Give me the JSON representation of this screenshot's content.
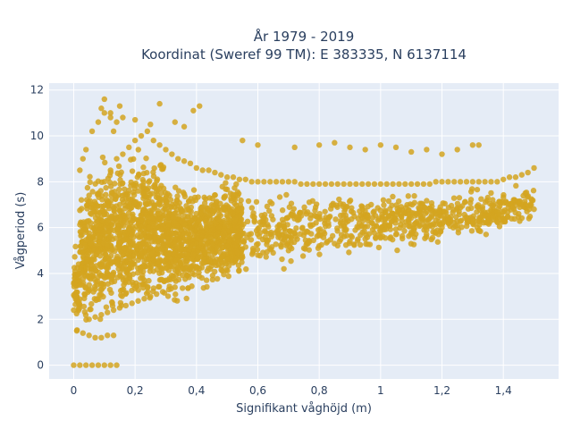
{
  "chart_data": {
    "type": "scatter",
    "title": "År 1979 - 2019",
    "subtitle": "Koordinat (Sweref 99 TM): E 383335, N 6137114",
    "xlabel": "Signifikant våghöjd (m)",
    "ylabel": "Vågperiod (s)",
    "xlim": [
      -0.08,
      1.58
    ],
    "ylim": [
      -0.6,
      12.3
    ],
    "x_ticks": [
      0,
      0.2,
      0.4,
      0.6,
      0.8,
      1,
      1.2,
      1.4
    ],
    "x_tick_labels": [
      "0",
      "0,2",
      "0,4",
      "0,6",
      "0,8",
      "1",
      "1,2",
      "1,4"
    ],
    "y_ticks": [
      0,
      2,
      4,
      6,
      8,
      10,
      12
    ],
    "y_tick_labels": [
      "0",
      "2",
      "4",
      "6",
      "8",
      "10",
      "12"
    ],
    "grid": true,
    "legend": "none",
    "marker_color": "#d4a520",
    "plot_background": "#e5ecf6",
    "series": [
      {
        "x": [
          0.0,
          0.02,
          0.04,
          0.06,
          0.08,
          0.1,
          0.12,
          0.14,
          0.01,
          0.03,
          0.05,
          0.07,
          0.09,
          0.11,
          0.13,
          0.0,
          0.01,
          0.02,
          0.03,
          0.04,
          0.05,
          0.02,
          0.03,
          0.04,
          0.06,
          0.08,
          0.1,
          0.12,
          0.14,
          0.16,
          0.05,
          0.07,
          0.09,
          0.11,
          0.13,
          0.15,
          0.17,
          0.19,
          0.21,
          0.23,
          0.25,
          0.27,
          0.29,
          0.31,
          0.33,
          0.06,
          0.08,
          0.1,
          0.12,
          0.14,
          0.16,
          0.18,
          0.2,
          0.22,
          0.24,
          0.26,
          0.28,
          0.3,
          0.32,
          0.34,
          0.36,
          0.38,
          0.4,
          0.42,
          0.44,
          0.46,
          0.48,
          0.5,
          0.52,
          0.54,
          0.56,
          0.58,
          0.6,
          0.62,
          0.64,
          0.66,
          0.68,
          0.7,
          0.72,
          0.74,
          0.76,
          0.78,
          0.8,
          0.82,
          0.84,
          0.86,
          0.88,
          0.9,
          0.92,
          0.94,
          0.96,
          0.98,
          1.0,
          1.02,
          1.04,
          1.06,
          1.08,
          1.1,
          1.12,
          1.14,
          1.16,
          1.18,
          1.2,
          1.22,
          1.24,
          1.26,
          1.28,
          1.3,
          1.32,
          1.34,
          1.36,
          1.38,
          1.4,
          1.42,
          1.44,
          1.46,
          1.48,
          1.5,
          0.08,
          0.1,
          0.12,
          0.14,
          0.16,
          0.18,
          0.2,
          0.22,
          0.24,
          0.26,
          0.28,
          0.3,
          0.32,
          0.34,
          0.4,
          0.46,
          0.5,
          0.55,
          0.6,
          0.65,
          0.7,
          0.75,
          0.8,
          0.85,
          0.9,
          0.95,
          1.0,
          1.05,
          1.1,
          1.15,
          1.2,
          1.25,
          1.3,
          1.35,
          1.4,
          1.45,
          1.5,
          0.09,
          0.1,
          0.12,
          0.13,
          0.15,
          0.2,
          0.25,
          0.28,
          0.33,
          0.36,
          0.39,
          0.41,
          0.55,
          0.6,
          0.72,
          0.8,
          0.85,
          0.9,
          0.95,
          1.0,
          1.05,
          1.1,
          1.15,
          1.2,
          1.25,
          1.3,
          1.32
        ],
        "y": [
          0.0,
          0.0,
          0.0,
          0.0,
          0.0,
          0.0,
          0.0,
          0.0,
          1.5,
          1.4,
          1.3,
          1.2,
          1.2,
          1.3,
          1.3,
          2.4,
          3.0,
          3.5,
          4.0,
          4.5,
          5.0,
          8.5,
          9.0,
          9.4,
          10.2,
          10.6,
          11.0,
          10.8,
          10.6,
          10.8,
          2.0,
          2.1,
          2.2,
          2.3,
          2.4,
          2.5,
          2.6,
          2.7,
          2.8,
          2.9,
          3.0,
          3.1,
          3.2,
          3.3,
          3.4,
          6.0,
          7.5,
          8.0,
          8.5,
          9.0,
          9.2,
          9.5,
          9.8,
          10.0,
          10.2,
          9.8,
          9.6,
          9.4,
          9.2,
          9.0,
          8.9,
          8.8,
          8.6,
          8.5,
          8.5,
          8.4,
          8.3,
          8.2,
          8.2,
          8.1,
          8.1,
          8.0,
          8.0,
          8.0,
          8.0,
          8.0,
          8.0,
          8.0,
          8.0,
          7.9,
          7.9,
          7.9,
          7.9,
          7.9,
          7.9,
          7.9,
          7.9,
          7.9,
          7.9,
          7.9,
          7.9,
          7.9,
          7.9,
          7.9,
          7.9,
          7.9,
          7.9,
          7.9,
          7.9,
          7.9,
          7.9,
          8.0,
          8.0,
          8.0,
          8.0,
          8.0,
          8.0,
          8.0,
          8.0,
          8.0,
          8.0,
          8.0,
          8.1,
          8.2,
          8.2,
          8.3,
          8.4,
          8.6,
          5.0,
          5.5,
          5.0,
          4.5,
          4.8,
          5.0,
          5.2,
          5.0,
          4.8,
          4.6,
          4.5,
          4.4,
          4.3,
          4.2,
          4.3,
          4.5,
          4.6,
          4.7,
          4.8,
          4.9,
          5.0,
          5.1,
          5.2,
          5.3,
          5.4,
          5.5,
          5.6,
          5.7,
          5.8,
          5.9,
          6.0,
          6.1,
          6.2,
          6.3,
          6.4,
          6.6,
          6.8,
          11.2,
          11.6,
          11.0,
          10.2,
          11.3,
          10.7,
          10.5,
          11.4,
          10.6,
          10.4,
          11.1,
          11.3,
          9.8,
          9.6,
          9.5,
          9.6,
          9.7,
          9.5,
          9.4,
          9.6,
          9.5,
          9.3,
          9.4,
          9.2,
          9.4,
          9.6,
          9.6
        ]
      }
    ]
  }
}
